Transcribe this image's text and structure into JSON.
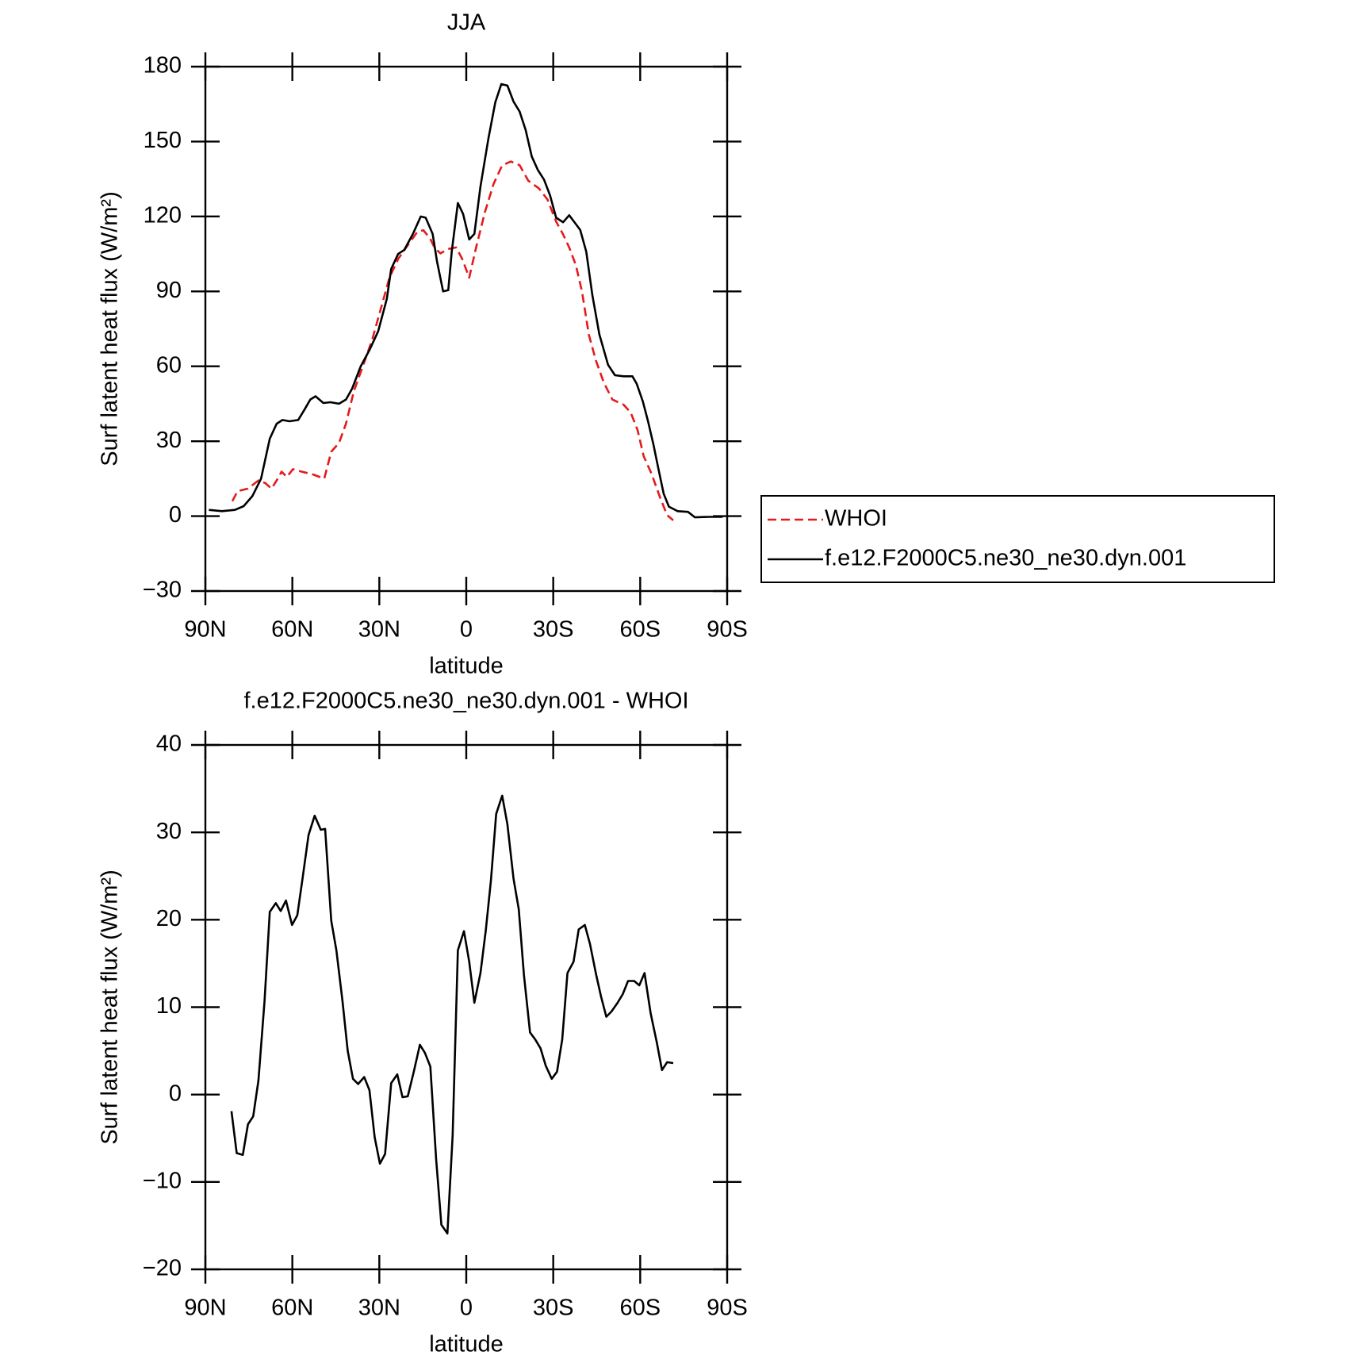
{
  "chart_data": [
    {
      "type": "line",
      "title": "JJA",
      "xlabel": "latitude",
      "ylabel": "Surf latent heat flux (W/m²)",
      "xlim": [
        90,
        -90
      ],
      "xticks": [
        {
          "value": 90,
          "label": "90N"
        },
        {
          "value": 60,
          "label": "60N"
        },
        {
          "value": 30,
          "label": "30N"
        },
        0,
        {
          "value": -30,
          "label": "30S"
        },
        {
          "value": -60,
          "label": "60S"
        },
        {
          "value": -90,
          "label": "90S"
        }
      ],
      "ylim": [
        -30,
        180
      ],
      "yticks": [
        {
          "value": -30,
          "label": "−30"
        },
        0,
        30,
        60,
        90,
        120,
        150,
        180
      ],
      "legend": "right",
      "series": [
        {
          "name": "WHOI",
          "color": "#e41a1c",
          "line_style": "dashed",
          "x": [
            80.7,
            78.9,
            75.3,
            71.7,
            69.3,
            67.2,
            65.4,
            63.7,
            61.9,
            59.8,
            56.8,
            52.9,
            49,
            46.6,
            43.9,
            41.5,
            38.8,
            35.5,
            32.5,
            29.5,
            26.5,
            23.5,
            19.9,
            16.9,
            14.8,
            12.4,
            10.9,
            8.9,
            6.2,
            3.5,
            1.4,
            -1,
            -3.4,
            -6.4,
            -9.4,
            -12.4,
            -15.4,
            -18.4,
            -21.4,
            -25,
            -28,
            -31,
            -33.4,
            -35.5,
            -37.8,
            -39.9,
            -42.3,
            -44.7,
            -47.4,
            -50.4,
            -54.3,
            -56.7,
            -59.1,
            -61.2,
            -63.9,
            -66.9,
            -69.3,
            -71.4
          ],
          "values": [
            6,
            10,
            11,
            14.3,
            13.2,
            11,
            14.3,
            17.8,
            15.7,
            18.8,
            17.8,
            16.7,
            15,
            25.8,
            29.3,
            37,
            50,
            60.6,
            70.5,
            83,
            95.5,
            103,
            109,
            113.8,
            114.5,
            111,
            107.3,
            105.2,
            107,
            107.6,
            103,
            95.5,
            107.6,
            121.6,
            133,
            140.5,
            142,
            140.5,
            134.3,
            131.3,
            126.8,
            118,
            112.8,
            107.6,
            100.5,
            90,
            72.6,
            62.4,
            53.6,
            46.7,
            44.6,
            41.5,
            34.5,
            24,
            17,
            7.3,
            0.4,
            -1.7
          ]
        },
        {
          "name": "f.e12.F2000C5.ne30_ne30.dyn.001",
          "color": "#000000",
          "line_style": "solid",
          "x": [
            88.8,
            84.3,
            79.8,
            76.8,
            73.8,
            70.8,
            67.8,
            65.4,
            63.4,
            61,
            58,
            55.9,
            53.8,
            52,
            49.3,
            46.9,
            43.9,
            41.5,
            39.4,
            36.4,
            33.4,
            30.4,
            27.4,
            25.9,
            23.5,
            21.4,
            18.4,
            15.7,
            14,
            11.6,
            10.1,
            8,
            6.2,
            5,
            2.9,
            1.1,
            -1,
            -2.8,
            -4.9,
            -7.6,
            -10,
            -12.1,
            -14.2,
            -16.3,
            -18.4,
            -20.5,
            -22.6,
            -24.7,
            -26.8,
            -28.9,
            -31,
            -33.4,
            -35.5,
            -37.5,
            -39.3,
            -41.4,
            -43.5,
            -45.9,
            -48.9,
            -51.3,
            -54.3,
            -57.3,
            -58.8,
            -60.9,
            -62.7,
            -64.5,
            -66.3,
            -68.1,
            -69.9,
            -72.9,
            -76.5,
            -78.9,
            -83.4,
            -88.4
          ],
          "values": [
            2.5,
            2,
            2.5,
            4,
            8,
            15,
            31,
            37,
            38.5,
            38,
            38.5,
            42.5,
            46.7,
            48,
            45.3,
            45.6,
            45,
            46.7,
            51,
            60,
            66.5,
            74,
            87,
            99,
            105,
            106.6,
            113,
            120,
            119.5,
            113,
            102,
            90,
            90.5,
            106,
            125.4,
            121,
            110.8,
            113,
            132,
            151,
            165.7,
            173,
            172.4,
            166,
            162,
            154.6,
            144,
            138.6,
            134.8,
            128.5,
            119.5,
            117.7,
            120.5,
            117.4,
            114.6,
            105.9,
            88.5,
            72.8,
            60.6,
            56.4,
            56,
            56,
            53,
            46,
            38,
            29,
            18.8,
            9,
            3.8,
            2,
            1.7,
            -0.5,
            -0.3,
            -0.3
          ]
        }
      ]
    },
    {
      "type": "line",
      "title": "f.e12.F2000C5.ne30_ne30.dyn.001 - WHOI",
      "xlabel": "latitude",
      "ylabel": "Surf latent heat flux (W/m²)",
      "xlim": [
        90,
        -90
      ],
      "xticks": [
        {
          "value": 90,
          "label": "90N"
        },
        {
          "value": 60,
          "label": "60N"
        },
        {
          "value": 30,
          "label": "30N"
        },
        0,
        {
          "value": -30,
          "label": "30S"
        },
        {
          "value": -60,
          "label": "60S"
        },
        {
          "value": -90,
          "label": "90S"
        }
      ],
      "ylim": [
        -20,
        40
      ],
      "yticks": [
        {
          "value": -20,
          "label": "−20"
        },
        {
          "value": -10,
          "label": "−10"
        },
        0,
        10,
        20,
        30,
        40
      ],
      "series": [
        {
          "color": "#000000",
          "line_style": "solid",
          "x": [
            81,
            79.2,
            77.1,
            75.3,
            73.5,
            71.7,
            69.6,
            67.8,
            65.7,
            64,
            62.2,
            60.1,
            58.3,
            56.5,
            54.4,
            52.3,
            50.2,
            48.7,
            46.6,
            44.8,
            42.7,
            40.9,
            39.1,
            37.3,
            35.2,
            33.4,
            31.6,
            29.8,
            28,
            25.9,
            23.8,
            22,
            20.2,
            18.1,
            16,
            14.3,
            12.4,
            10.4,
            8.6,
            6.5,
            4.7,
            2.9,
            0.8,
            -1,
            -2.8,
            -4.9,
            -6.7,
            -8.5,
            -10.3,
            -12.4,
            -14.2,
            -16.3,
            -18.1,
            -19.9,
            -22,
            -23.8,
            -25.6,
            -27.4,
            -29.5,
            -31.3,
            -33.1,
            -34.9,
            -37,
            -38.8,
            -40.9,
            -42.7,
            -44.8,
            -46.5,
            -48.3,
            -50.1,
            -52.2,
            -54,
            -55.8,
            -57.9,
            -59.7,
            -61.5,
            -63.6,
            -65.7,
            -67.5,
            -69.3,
            -71.4
          ],
          "values": [
            -1.9,
            -6.7,
            -6.9,
            -3.4,
            -2.5,
            1.6,
            10.7,
            20.9,
            21.9,
            21,
            22.2,
            19.4,
            20.5,
            24.7,
            29.7,
            31.9,
            30.3,
            30.4,
            19.9,
            16.5,
            10.7,
            5,
            1.8,
            1.2,
            2,
            0.5,
            -4.9,
            -7.9,
            -6.8,
            1.3,
            2.3,
            -0.3,
            -0.2,
            2.6,
            5.7,
            4.8,
            3.2,
            -7.4,
            -14.9,
            -15.9,
            -4.7,
            16.5,
            18.7,
            15.2,
            10.5,
            13.9,
            18.7,
            24.5,
            32.1,
            34.2,
            30.9,
            24.7,
            21.2,
            13.7,
            7.1,
            6.3,
            5.3,
            3.3,
            1.8,
            2.6,
            6.3,
            13.9,
            15.2,
            18.9,
            19.4,
            17.2,
            13.7,
            11.2,
            8.9,
            9.5,
            10.5,
            11.5,
            13,
            13,
            12.5,
            13.9,
            9.3,
            6,
            2.8,
            3.7,
            3.6
          ]
        }
      ]
    }
  ]
}
